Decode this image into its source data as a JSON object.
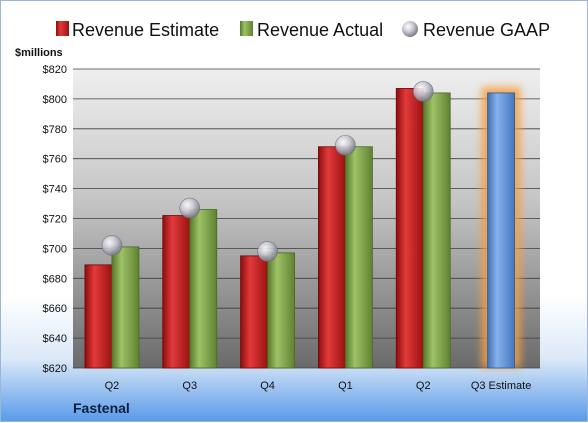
{
  "chart_data": {
    "type": "bar",
    "unit_label": "$millions",
    "company": "Fastenal",
    "categories": [
      "Q2",
      "Q3",
      "Q4",
      "Q1",
      "Q2",
      "Q3 Estimate"
    ],
    "series": [
      {
        "name": "Revenue Estimate",
        "values": [
          689,
          722,
          695,
          768,
          807,
          null
        ],
        "color": "#cc1f1f"
      },
      {
        "name": "Revenue Actual",
        "values": [
          701,
          726,
          697,
          768,
          804,
          804
        ],
        "color": "#7fa64a"
      },
      {
        "name": "Revenue GAAP",
        "values": [
          702,
          727,
          698,
          769,
          805,
          null
        ],
        "color": "#b8b8c8"
      }
    ],
    "highlight": {
      "category": "Q3 Estimate",
      "color": "#5b8fd6",
      "glow": "#f5a040"
    },
    "ylim": [
      620,
      820
    ],
    "yticks": [
      "$620",
      "$640",
      "$660",
      "$680",
      "$700",
      "$720",
      "$740",
      "$760",
      "$780",
      "$800",
      "$820"
    ],
    "grid": true,
    "legend_position": "top"
  }
}
